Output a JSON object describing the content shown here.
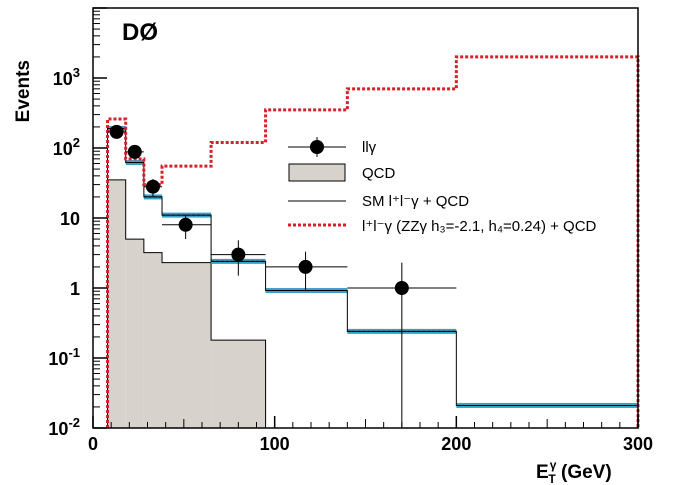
{
  "chart_data": {
    "type": "step",
    "experiment_label": "DØ",
    "ylabel": "Events",
    "xlabel_main": "E",
    "xlabel_sup": "γ",
    "xlabel_sub": "T",
    "xlabel_unit": " (GeV)",
    "xlim": [
      0,
      300
    ],
    "ylim": [
      0.01,
      10000
    ],
    "yscale": "log",
    "x_ticks": [
      {
        "value": 0,
        "label": "0"
      },
      {
        "value": 100,
        "label": "100"
      },
      {
        "value": 200,
        "label": "200"
      },
      {
        "value": 300,
        "label": "300"
      }
    ],
    "y_ticks": [
      {
        "value": 0.01,
        "base": "10",
        "exp": "-2"
      },
      {
        "value": 0.1,
        "base": "10",
        "exp": "-1"
      },
      {
        "value": 1,
        "base": "1",
        "exp": ""
      },
      {
        "value": 10,
        "base": "10",
        "exp": ""
      },
      {
        "value": 100,
        "base": "10",
        "exp": "2"
      },
      {
        "value": 1000,
        "base": "10",
        "exp": "3"
      }
    ],
    "legend_position": "right",
    "legend": [
      {
        "key": "data",
        "text": "llγ"
      },
      {
        "key": "qcd",
        "text": "QCD"
      },
      {
        "key": "sm",
        "text": "SM l⁺l⁻γ + QCD"
      },
      {
        "key": "anomalous",
        "text": "l⁺l⁻γ (ZZγ h₃=-2.1, h₄=0.24) + QCD"
      }
    ],
    "data_points": [
      {
        "x": 13,
        "y": 170,
        "xerr": [
          8,
          18
        ],
        "yerr": [
          140,
          200
        ]
      },
      {
        "x": 23,
        "y": 88,
        "xerr": [
          18,
          28
        ],
        "yerr": [
          70,
          105
        ]
      },
      {
        "x": 33,
        "y": 28,
        "xerr": [
          28,
          38
        ],
        "yerr": [
          20,
          36
        ]
      },
      {
        "x": 51,
        "y": 8,
        "xerr": [
          38,
          65
        ],
        "yerr": [
          5,
          11
        ]
      },
      {
        "x": 80,
        "y": 3,
        "xerr": [
          65,
          95
        ],
        "yerr": [
          1.5,
          4.8
        ]
      },
      {
        "x": 117,
        "y": 2,
        "xerr": [
          95,
          140
        ],
        "yerr": [
          0.9,
          3.3
        ]
      },
      {
        "x": 170,
        "y": 1,
        "xerr": [
          140,
          200
        ],
        "yerr": [
          0.01,
          2.3
        ]
      }
    ],
    "qcd_bins": [
      {
        "x0": 8,
        "x1": 18,
        "y": 35
      },
      {
        "x0": 18,
        "x1": 28,
        "y": 5
      },
      {
        "x0": 28,
        "x1": 38,
        "y": 3.2
      },
      {
        "x0": 38,
        "x1": 65,
        "y": 2.3
      },
      {
        "x0": 65,
        "x1": 95,
        "y": 0.18
      }
    ],
    "sm_bins": [
      {
        "x0": 8,
        "x1": 18,
        "y": 190
      },
      {
        "x0": 18,
        "x1": 28,
        "y": 62
      },
      {
        "x0": 28,
        "x1": 38,
        "y": 20
      },
      {
        "x0": 38,
        "x1": 65,
        "y": 11
      },
      {
        "x0": 65,
        "x1": 95,
        "y": 2.4
      },
      {
        "x0": 95,
        "x1": 140,
        "y": 0.92
      },
      {
        "x0": 140,
        "x1": 200,
        "y": 0.24
      },
      {
        "x0": 200,
        "x1": 300,
        "y": 0.021
      }
    ],
    "anomalous_bins": [
      {
        "x0": 8,
        "x1": 18,
        "y": 260
      },
      {
        "x0": 18,
        "x1": 28,
        "y": 70
      },
      {
        "x0": 28,
        "x1": 38,
        "y": 30
      },
      {
        "x0": 38,
        "x1": 65,
        "y": 55
      },
      {
        "x0": 65,
        "x1": 95,
        "y": 120
      },
      {
        "x0": 95,
        "x1": 140,
        "y": 350
      },
      {
        "x0": 140,
        "x1": 200,
        "y": 700
      },
      {
        "x0": 200,
        "x1": 300,
        "y": 2000
      }
    ],
    "colors": {
      "qcd_fill": "#d7d2cc",
      "sm_band": "#3aa0c8",
      "anomalous": "#d6202a",
      "data": "#000000"
    }
  }
}
